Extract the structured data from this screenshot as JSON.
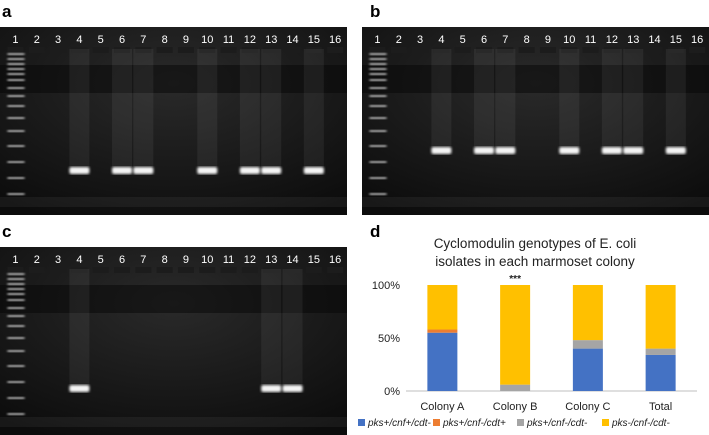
{
  "panels": {
    "a": {
      "letter": "a"
    },
    "b": {
      "letter": "b"
    },
    "c": {
      "letter": "c"
    },
    "d": {
      "letter": "d"
    }
  },
  "gels": {
    "a": {
      "lanes": [
        "1",
        "2",
        "3",
        "4",
        "5",
        "6",
        "7",
        "8",
        "9",
        "10",
        "11",
        "12",
        "13",
        "14",
        "15",
        "16"
      ],
      "positive_lanes": [
        4,
        6,
        7,
        10,
        12,
        13,
        15
      ]
    },
    "b": {
      "lanes": [
        "1",
        "2",
        "3",
        "4",
        "5",
        "6",
        "7",
        "8",
        "9",
        "10",
        "11",
        "12",
        "13",
        "14",
        "15",
        "16"
      ],
      "positive_lanes": [
        4,
        6,
        7,
        10,
        12,
        13,
        15
      ]
    },
    "c": {
      "lanes": [
        "1",
        "2",
        "3",
        "4",
        "5",
        "6",
        "7",
        "8",
        "9",
        "10",
        "11",
        "12",
        "13",
        "14",
        "15",
        "16"
      ],
      "positive_lanes": [
        4,
        13,
        14
      ]
    }
  },
  "chart_data": {
    "type": "bar",
    "stacked": true,
    "title_line1": "Cyclomodulin genotypes of E. coli",
    "title_line2": "isolates in each marmoset colony",
    "categories": [
      "Colony A",
      "Colony B",
      "Colony C",
      "Total"
    ],
    "ylim": [
      0,
      100
    ],
    "yticks": [
      "0%",
      "50%",
      "100%"
    ],
    "annotation": {
      "category": "Colony B",
      "text": "***"
    },
    "series": [
      {
        "name": "pks+/cnf+/cdt-",
        "color": "#4472C4",
        "values": [
          55,
          0,
          40,
          34
        ]
      },
      {
        "name": "pks+/cnf-/cdt+",
        "color": "#ED7D31",
        "values": [
          3,
          0,
          0,
          0
        ]
      },
      {
        "name": "pks+/cnf-/cdt-",
        "color": "#A5A5A5",
        "values": [
          0,
          6,
          8,
          6
        ]
      },
      {
        "name": "pks-/cnf-/cdt-",
        "color": "#FFC000",
        "values": [
          42,
          94,
          52,
          60
        ]
      }
    ]
  }
}
